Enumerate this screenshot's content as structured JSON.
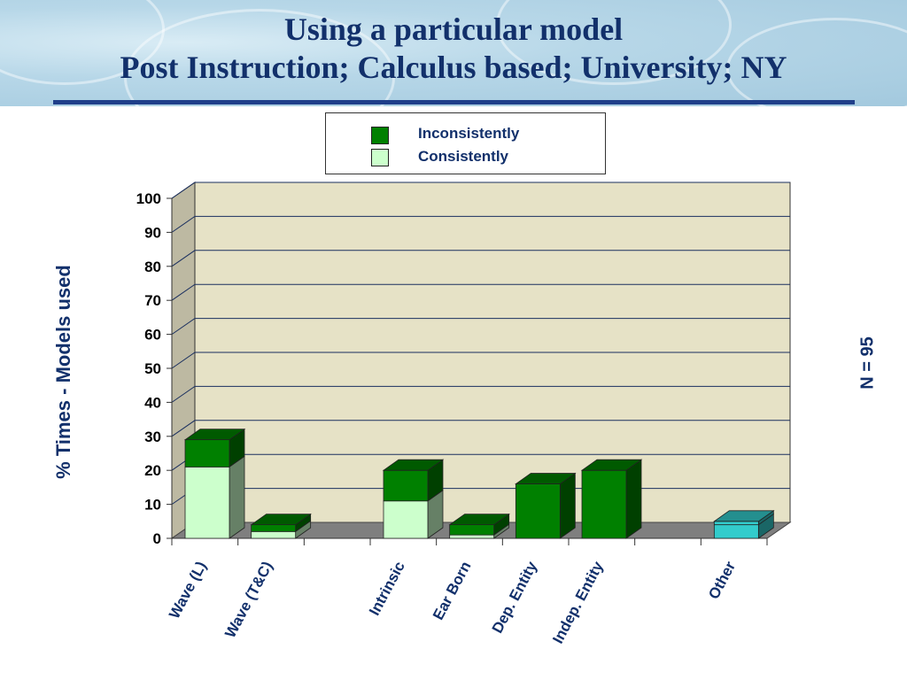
{
  "slide": {
    "title_line1": "Using a particular model",
    "title_line2": "Post Instruction; Calculus based; University; NY",
    "n_label": "N = 95"
  },
  "colors": {
    "inconsistently": "#008000",
    "consistently": "#ccffcc",
    "other": "#33cccc",
    "plot_wall": "#e6e2c6",
    "floor": "#7f7f7f",
    "text": "#12306b"
  },
  "chart_data": {
    "type": "bar",
    "stacked": true,
    "three_d": true,
    "categories": [
      "Wave (L)",
      "Wave (T&C)",
      "",
      "Intrinsic",
      "Ear Born",
      "Dep. Entity",
      "Indep. Entity",
      "",
      "Other"
    ],
    "series": [
      {
        "name": "Consistently",
        "values": [
          21,
          2,
          0,
          11,
          1,
          0,
          0,
          0,
          4
        ]
      },
      {
        "name": "Inconsistently",
        "values": [
          8,
          2,
          0,
          9,
          3,
          16,
          20,
          0,
          1
        ]
      }
    ],
    "ylabel": "% Times - Models used",
    "ylim": [
      0,
      100
    ],
    "yticks": [
      0,
      10,
      20,
      30,
      40,
      50,
      60,
      70,
      80,
      90,
      100
    ],
    "grid": true,
    "legend": "top"
  }
}
